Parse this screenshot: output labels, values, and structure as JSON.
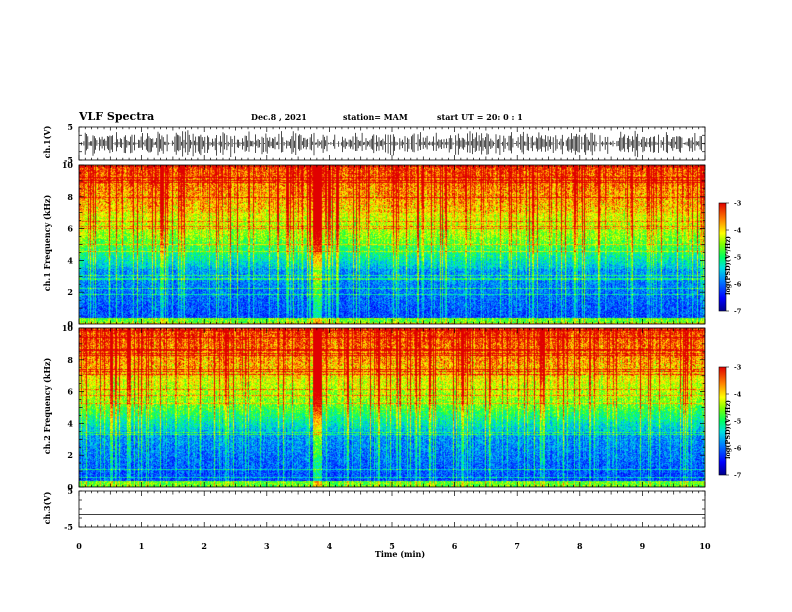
{
  "header": {
    "title": "VLF Spectra",
    "date": "Dec.8 , 2021",
    "station": "station= MAM",
    "start": "start UT = 20: 0 : 1"
  },
  "colors": {
    "palette": [
      "#00008b",
      "#0000ff",
      "#0080ff",
      "#00e0e0",
      "#00ff80",
      "#40ff00",
      "#c0ff00",
      "#ffff00",
      "#ff9900",
      "#ff2000",
      "#e00000"
    ]
  },
  "chart_data": [
    {
      "type": "line",
      "title": "",
      "ylabel": "ch.1(V)",
      "ylim": [
        -5,
        5
      ],
      "yticks": [
        "5",
        "-5"
      ],
      "series": [
        {
          "values": "dense burst waveform spanning roughly -4 to +4 V"
        }
      ]
    },
    {
      "type": "heatmap",
      "ylabel": "ch.1 Frequency (kHz)",
      "ylim": [
        0,
        10
      ],
      "yticks": [
        "0",
        "2",
        "4",
        "6",
        "8",
        "10"
      ],
      "colorbar": {
        "label": "log(PSD)(V²/Hz)",
        "range": [
          -7,
          -3
        ],
        "ticks": [
          "-3",
          "-4",
          "-5",
          "-6",
          "-7"
        ]
      }
    },
    {
      "type": "heatmap",
      "ylabel": "ch.2 Frequency (kHz)",
      "ylim": [
        0,
        10
      ],
      "yticks": [
        "0",
        "2",
        "4",
        "6",
        "8",
        "10"
      ],
      "colorbar": {
        "label": "log(PSD)(V²/Hz)",
        "range": [
          -7,
          -3
        ],
        "ticks": [
          "-3",
          "-4",
          "-5",
          "-6",
          "-7"
        ]
      }
    },
    {
      "type": "line",
      "ylabel": "ch.3(V)",
      "ylim": [
        -5,
        5
      ],
      "yticks": [
        "5",
        "-5"
      ],
      "series": [
        {
          "values": [
            -1.5,
            -1.5
          ]
        }
      ]
    }
  ],
  "xaxis": {
    "label": "Time (min)",
    "range": [
      0,
      10
    ],
    "ticks": [
      "0",
      "1",
      "2",
      "3",
      "4",
      "5",
      "6",
      "7",
      "8",
      "9",
      "10"
    ]
  }
}
